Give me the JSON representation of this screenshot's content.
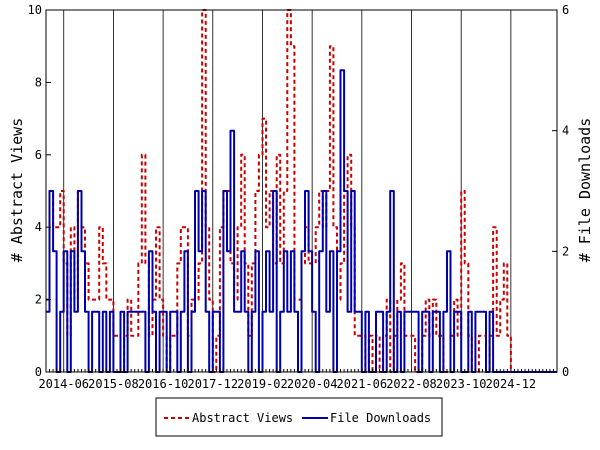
{
  "chart_data": {
    "type": "line",
    "ylabel": "# Abstract Views",
    "y2label": "# File Downloads",
    "ylim": [
      0,
      10
    ],
    "y2lim": [
      0,
      6
    ],
    "yticks": [
      0,
      2,
      4,
      6,
      8,
      10
    ],
    "y2ticks": [
      0,
      2,
      4,
      6
    ],
    "xlim": [
      "2014-01",
      "2025-12"
    ],
    "xtick_labels": [
      "2014-06",
      "2015-08",
      "2016-10",
      "2017-12",
      "2019-02",
      "2020-04",
      "2021-06",
      "2022-08",
      "2023-10",
      "2024-12"
    ],
    "legend": {
      "placement": "bottom-center",
      "entries": [
        "Abstract Views",
        "File Downloads"
      ]
    },
    "colors": {
      "views": "#cc0000",
      "downloads": "#0000aa"
    },
    "series": [
      {
        "name": "Abstract Views",
        "axis": "left",
        "style": "dashed",
        "x": [
          "2014-01",
          "2014-02",
          "2014-03",
          "2014-04",
          "2014-05",
          "2014-06",
          "2014-07",
          "2014-08",
          "2014-09",
          "2014-10",
          "2014-11",
          "2014-12",
          "2015-01",
          "2015-02",
          "2015-03",
          "2015-04",
          "2015-05",
          "2015-06",
          "2015-07",
          "2015-08",
          "2015-09",
          "2015-10",
          "2015-11",
          "2015-12",
          "2016-01",
          "2016-02",
          "2016-03",
          "2016-04",
          "2016-05",
          "2016-06",
          "2016-07",
          "2016-08",
          "2016-09",
          "2016-10",
          "2016-11",
          "2016-12",
          "2017-01",
          "2017-02",
          "2017-03",
          "2017-04",
          "2017-05",
          "2017-06",
          "2017-07",
          "2017-08",
          "2017-09",
          "2017-10",
          "2017-11",
          "2017-12",
          "2018-01",
          "2018-02",
          "2018-03",
          "2018-04",
          "2018-05",
          "2018-06",
          "2018-07",
          "2018-08",
          "2018-09",
          "2018-10",
          "2018-11",
          "2018-12",
          "2019-01",
          "2019-02",
          "2019-03",
          "2019-04",
          "2019-05",
          "2019-06",
          "2019-07",
          "2019-08",
          "2019-09",
          "2019-10",
          "2019-11",
          "2019-12",
          "2020-01",
          "2020-02",
          "2020-03",
          "2020-04",
          "2020-05",
          "2020-06",
          "2020-07",
          "2020-08",
          "2020-09",
          "2020-10",
          "2020-11",
          "2020-12",
          "2021-01",
          "2021-02",
          "2021-03",
          "2021-04",
          "2021-05",
          "2021-06",
          "2021-07",
          "2021-08",
          "2021-09",
          "2021-10",
          "2021-11",
          "2021-12",
          "2022-01",
          "2022-02",
          "2022-03",
          "2022-04",
          "2022-05",
          "2022-06",
          "2022-07",
          "2022-08",
          "2022-09",
          "2022-10",
          "2022-11",
          "2022-12",
          "2023-01",
          "2023-02",
          "2023-03",
          "2023-04",
          "2023-05",
          "2023-06",
          "2023-07",
          "2023-08",
          "2023-09",
          "2023-10",
          "2023-11",
          "2023-12",
          "2024-01",
          "2024-02",
          "2024-03",
          "2024-04",
          "2024-05",
          "2024-06",
          "2024-07",
          "2024-08",
          "2024-09",
          "2024-10",
          "2024-11",
          "2024-12",
          "2025-01",
          "2025-02",
          "2025-03",
          "2025-04",
          "2025-05",
          "2025-06",
          "2025-07",
          "2025-08",
          "2025-09",
          "2025-10",
          "2025-11",
          "2025-12"
        ],
        "y": [
          2,
          5,
          4,
          4,
          5,
          3,
          1,
          4,
          2,
          5,
          4,
          3,
          2,
          2,
          2,
          4,
          3,
          2,
          2,
          1,
          1,
          0,
          1,
          2,
          1,
          1,
          3,
          6,
          3,
          1,
          2,
          4,
          2,
          1,
          0,
          1,
          1,
          3,
          4,
          4,
          1,
          2,
          2,
          3,
          10,
          4,
          2,
          0,
          1,
          4,
          5,
          5,
          3,
          2,
          4,
          6,
          3,
          1,
          3,
          5,
          6,
          7,
          4,
          5,
          3,
          6,
          3,
          5,
          10,
          9,
          2,
          2,
          3,
          4,
          3,
          3,
          4,
          5,
          4,
          5,
          9,
          4,
          2,
          3,
          5,
          6,
          4,
          1,
          1,
          1,
          0,
          1,
          0,
          1,
          0,
          1,
          2,
          0,
          1,
          2,
          3,
          1,
          1,
          1,
          0,
          0,
          1,
          2,
          1,
          2,
          1,
          1,
          0,
          0,
          1,
          2,
          1,
          5,
          3,
          1,
          0,
          0,
          1,
          1,
          0,
          1,
          4,
          1,
          2,
          3,
          1,
          0,
          0,
          0,
          0,
          0,
          0,
          0,
          0,
          0,
          0,
          0,
          0,
          0
        ]
      },
      {
        "name": "File Downloads",
        "axis": "right",
        "style": "solid",
        "x": [
          "2014-01",
          "2014-02",
          "2014-03",
          "2014-04",
          "2014-05",
          "2014-06",
          "2014-07",
          "2014-08",
          "2014-09",
          "2014-10",
          "2014-11",
          "2014-12",
          "2015-01",
          "2015-02",
          "2015-03",
          "2015-04",
          "2015-05",
          "2015-06",
          "2015-07",
          "2015-08",
          "2015-09",
          "2015-10",
          "2015-11",
          "2015-12",
          "2016-01",
          "2016-02",
          "2016-03",
          "2016-04",
          "2016-05",
          "2016-06",
          "2016-07",
          "2016-08",
          "2016-09",
          "2016-10",
          "2016-11",
          "2016-12",
          "2017-01",
          "2017-02",
          "2017-03",
          "2017-04",
          "2017-05",
          "2017-06",
          "2017-07",
          "2017-08",
          "2017-09",
          "2017-10",
          "2017-11",
          "2017-12",
          "2018-01",
          "2018-02",
          "2018-03",
          "2018-04",
          "2018-05",
          "2018-06",
          "2018-07",
          "2018-08",
          "2018-09",
          "2018-10",
          "2018-11",
          "2018-12",
          "2019-01",
          "2019-02",
          "2019-03",
          "2019-04",
          "2019-05",
          "2019-06",
          "2019-07",
          "2019-08",
          "2019-09",
          "2019-10",
          "2019-11",
          "2019-12",
          "2020-01",
          "2020-02",
          "2020-03",
          "2020-04",
          "2020-05",
          "2020-06",
          "2020-07",
          "2020-08",
          "2020-09",
          "2020-10",
          "2020-11",
          "2020-12",
          "2021-01",
          "2021-02",
          "2021-03",
          "2021-04",
          "2021-05",
          "2021-06",
          "2021-07",
          "2021-08",
          "2021-09",
          "2021-10",
          "2021-11",
          "2021-12",
          "2022-01",
          "2022-02",
          "2022-03",
          "2022-04",
          "2022-05",
          "2022-06",
          "2022-07",
          "2022-08",
          "2022-09",
          "2022-10",
          "2022-11",
          "2022-12",
          "2023-01",
          "2023-02",
          "2023-03",
          "2023-04",
          "2023-05",
          "2023-06",
          "2023-07",
          "2023-08",
          "2023-09",
          "2023-10",
          "2023-11",
          "2023-12",
          "2024-01",
          "2024-02",
          "2024-03",
          "2024-04",
          "2024-05",
          "2024-06",
          "2024-07",
          "2024-08",
          "2024-09",
          "2024-10",
          "2024-11",
          "2024-12",
          "2025-01",
          "2025-02",
          "2025-03",
          "2025-04",
          "2025-05",
          "2025-06",
          "2025-07",
          "2025-08",
          "2025-09",
          "2025-10",
          "2025-11",
          "2025-12"
        ],
        "y": [
          1,
          3,
          2,
          0,
          1,
          2,
          0,
          2,
          1,
          3,
          2,
          1,
          0,
          1,
          1,
          0,
          1,
          0,
          1,
          0,
          0,
          1,
          0,
          1,
          1,
          1,
          1,
          1,
          0,
          2,
          1,
          0,
          1,
          1,
          0,
          1,
          1,
          0,
          1,
          2,
          0,
          1,
          3,
          2,
          3,
          1,
          0,
          1,
          1,
          0,
          3,
          2,
          4,
          1,
          1,
          2,
          1,
          0,
          1,
          2,
          0,
          1,
          2,
          1,
          3,
          0,
          1,
          2,
          1,
          2,
          1,
          0,
          2,
          3,
          2,
          1,
          0,
          2,
          3,
          1,
          2,
          0,
          2,
          5,
          3,
          1,
          3,
          1,
          1,
          0,
          1,
          0,
          0,
          1,
          1,
          0,
          1,
          3,
          0,
          1,
          0,
          1,
          1,
          1,
          1,
          0,
          1,
          1,
          0,
          1,
          1,
          0,
          1,
          2,
          0,
          1,
          1,
          0,
          0,
          1,
          0,
          1,
          1,
          1,
          0,
          1,
          0,
          0,
          0,
          0,
          0,
          0,
          0,
          0,
          0,
          0,
          0,
          0,
          0,
          0,
          0,
          0,
          0,
          0
        ]
      }
    ]
  }
}
